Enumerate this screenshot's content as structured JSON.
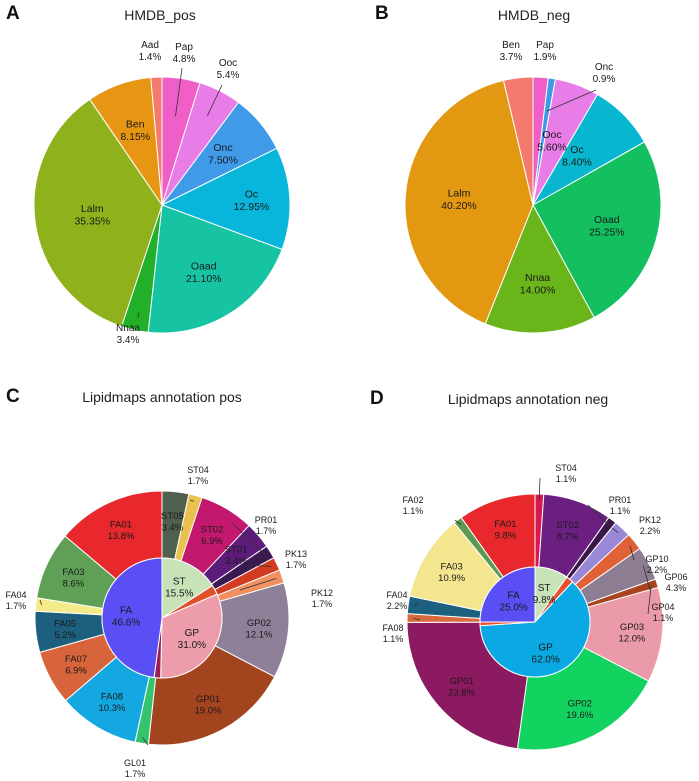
{
  "chart_data": [
    {
      "type": "pie",
      "panel_letter": "A",
      "title": "HMDB_pos",
      "slices": [
        {
          "label": "Pap",
          "value": 4.8,
          "text": "4.8%",
          "color": "#f05ec8"
        },
        {
          "label": "Ooc",
          "value": 5.4,
          "text": "5.4%",
          "color": "#e97de8"
        },
        {
          "label": "Onc",
          "value": 7.5,
          "text": "7.50%",
          "color": "#3f9be8"
        },
        {
          "label": "Oc",
          "value": 12.95,
          "text": "12.95%",
          "color": "#08b6dc"
        },
        {
          "label": "Oaad",
          "value": 21.1,
          "text": "21.10%",
          "color": "#16c4a4"
        },
        {
          "label": "Nnaa",
          "value": 3.4,
          "text": "3.4%",
          "color": "#22b02a"
        },
        {
          "label": "Lalm",
          "value": 35.35,
          "text": "35.35%",
          "color": "#8fb21c"
        },
        {
          "label": "Ben",
          "value": 8.15,
          "text": "8.15%",
          "color": "#e69612"
        },
        {
          "label": "Aad",
          "value": 1.4,
          "text": "1.4%",
          "color": "#f47a6e"
        }
      ]
    },
    {
      "type": "pie",
      "panel_letter": "B",
      "title": "HMDB_neg",
      "slices": [
        {
          "label": "Pap",
          "value": 1.9,
          "text": "1.9%",
          "color": "#f05ec8"
        },
        {
          "label": "Onc",
          "value": 0.9,
          "text": "0.9%",
          "color": "#3f9be8"
        },
        {
          "label": "Ooc",
          "value": 5.6,
          "text": "5.60%",
          "color": "#e97de8"
        },
        {
          "label": "Oc",
          "value": 8.4,
          "text": "8.40%",
          "color": "#08b6cf"
        },
        {
          "label": "Oaad",
          "value": 25.25,
          "text": "25.25%",
          "color": "#14bf60"
        },
        {
          "label": "Nnaa",
          "value": 14.0,
          "text": "14.00%",
          "color": "#6ab51a"
        },
        {
          "label": "Lalm",
          "value": 40.2,
          "text": "40.20%",
          "color": "#e39812"
        },
        {
          "label": "Ben",
          "value": 3.7,
          "text": "3.7%",
          "color": "#f47a6e"
        }
      ]
    },
    {
      "type": "pie",
      "subtype": "nested-donut",
      "panel_letter": "C",
      "title": "Lipidmaps annotation pos",
      "inner": [
        {
          "label": "ST",
          "value": 15.5,
          "text": "15.5%",
          "color": "#c9e3b8"
        },
        {
          "label": "",
          "value": 2.5,
          "text": "",
          "color": "#e0512a"
        },
        {
          "label": "GP",
          "value": 31.0,
          "text": "31.0%",
          "color": "#ec9cab"
        },
        {
          "label": "",
          "value": 1.7,
          "text": "",
          "color": "#9a1f58"
        },
        {
          "label": "FA",
          "value": 46.6,
          "text": "46.6%",
          "color": "#5a4ef5"
        }
      ],
      "outer": [
        {
          "label": "ST05",
          "value": 3.4,
          "text": "3.4%",
          "color": "#50604e"
        },
        {
          "label": "ST04",
          "value": 1.7,
          "text": "1.7%",
          "color": "#e9c14e"
        },
        {
          "label": "ST02",
          "value": 6.9,
          "text": "6.9%",
          "color": "#c2186e"
        },
        {
          "label": "ST01",
          "value": 3.4,
          "text": "3.4%",
          "color": "#5d1c7a"
        },
        {
          "label": "PR01",
          "value": 1.7,
          "text": "1.7%",
          "color": "#3a1850"
        },
        {
          "label": "PK13",
          "value": 1.7,
          "text": "1.7%",
          "color": "#d33c20"
        },
        {
          "label": "PK12",
          "value": 1.7,
          "text": "1.7%",
          "color": "#f09060"
        },
        {
          "label": "GP02",
          "value": 12.1,
          "text": "12.1%",
          "color": "#8e8098"
        },
        {
          "label": "GP01",
          "value": 19.0,
          "text": "19.0%",
          "color": "#a2451e"
        },
        {
          "label": "GL01",
          "value": 1.7,
          "text": "1.7%",
          "color": "#34c46e"
        },
        {
          "label": "FA08",
          "value": 10.3,
          "text": "10.3%",
          "color": "#13a8e2"
        },
        {
          "label": "FA07",
          "value": 6.9,
          "text": "6.9%",
          "color": "#d7643a"
        },
        {
          "label": "FA05",
          "value": 5.2,
          "text": "5.2%",
          "color": "#1d5f7e"
        },
        {
          "label": "FA04",
          "value": 1.7,
          "text": "1.7%",
          "color": "#f3ea8a"
        },
        {
          "label": "FA03",
          "value": 8.6,
          "text": "8.6%",
          "color": "#5fa056"
        },
        {
          "label": "FA01",
          "value": 13.8,
          "text": "13.8%",
          "color": "#e8282c"
        }
      ]
    },
    {
      "type": "pie",
      "subtype": "nested-donut",
      "panel_letter": "D",
      "title": "Lipidmaps annotation neg",
      "inner": [
        {
          "label": "ST",
          "value": 9.8,
          "text": "9.8%",
          "color": "#c9e3b8"
        },
        {
          "label": "",
          "value": 2.2,
          "text": "",
          "color": "#e85030"
        },
        {
          "label": "GP",
          "value": 62.0,
          "text": "62.0%",
          "color": "#0aa9e3"
        },
        {
          "label": "",
          "value": 1.1,
          "text": "",
          "color": "#e85030"
        },
        {
          "label": "FA",
          "value": 25.0,
          "text": "25.0%",
          "color": "#5a4ef5"
        }
      ],
      "outer": [
        {
          "label": "ST04",
          "value": 1.1,
          "text": "1.1%",
          "color": "#d81850"
        },
        {
          "label": "ST02",
          "value": 8.7,
          "text": "8.7%",
          "color": "#6b1f80"
        },
        {
          "label": "PR01",
          "value": 1.1,
          "text": "1.1%",
          "color": "#3b1748"
        },
        {
          "label": "PK12",
          "value": 2.2,
          "text": "2.2%",
          "color": "#9988d6"
        },
        {
          "label": "GP10",
          "value": 2.2,
          "text": "2.2%",
          "color": "#e06038"
        },
        {
          "label": "GP06",
          "value": 4.3,
          "text": "4.3%",
          "color": "#8c7d92"
        },
        {
          "label": "GP04",
          "value": 1.1,
          "text": "1.1%",
          "color": "#a8451e"
        },
        {
          "label": "GP03",
          "value": 12.0,
          "text": "12.0%",
          "color": "#ea9aa8"
        },
        {
          "label": "GP02",
          "value": 19.6,
          "text": "19.6%",
          "color": "#12d360"
        },
        {
          "label": "GP01",
          "value": 22.8,
          "text": "22.8%",
          "color": "#8c1a60"
        },
        {
          "label": "FA08",
          "value": 1.1,
          "text": "1.1%",
          "color": "#d86a3e"
        },
        {
          "label": "FA04",
          "value": 2.2,
          "text": "2.2%",
          "color": "#1d5f7e"
        },
        {
          "label": "FA03",
          "value": 10.9,
          "text": "10.9%",
          "color": "#f3e68e"
        },
        {
          "label": "FA02",
          "value": 1.1,
          "text": "1.1%",
          "color": "#5c9a50"
        },
        {
          "label": "FA01",
          "value": 9.8,
          "text": "9.8%",
          "color": "#e8282c"
        }
      ]
    }
  ]
}
